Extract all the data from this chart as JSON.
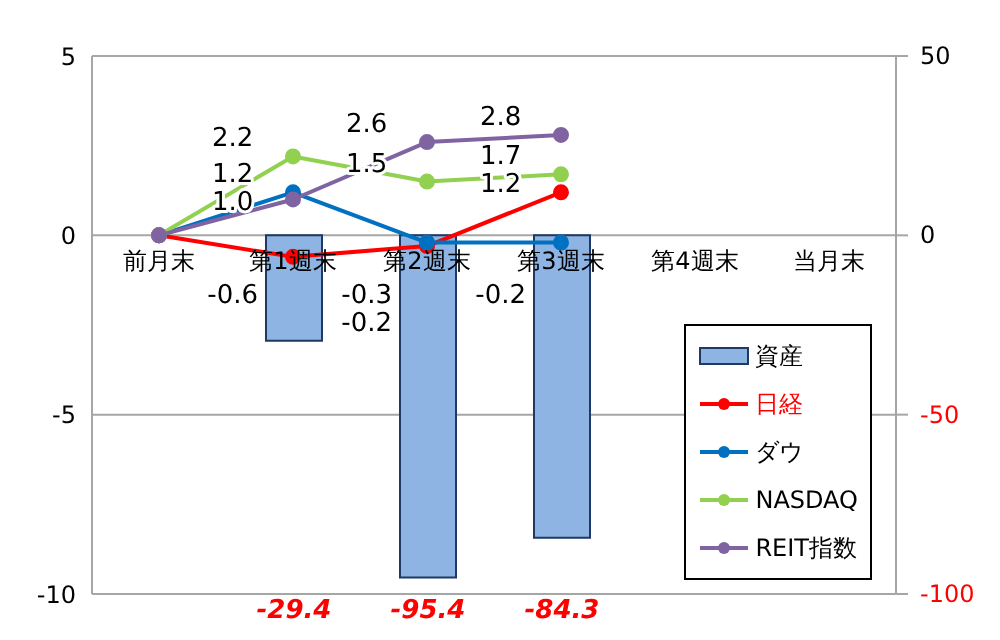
{
  "chart_data": {
    "type": "line",
    "categories": [
      "前月末",
      "第1週末",
      "第2週末",
      "第3週末",
      "第4週末",
      "当月末"
    ],
    "series": [
      {
        "name": "資産",
        "type": "bar",
        "axis": "y2",
        "color": "#8db4e2",
        "values": [
          null,
          -29.4,
          -95.4,
          -84.3,
          null,
          null
        ],
        "value_labels": [
          null,
          "-29.4",
          "-95.4",
          "-84.3",
          null,
          null
        ]
      },
      {
        "name": "日経",
        "color": "#ff0000",
        "values": [
          0,
          -0.6,
          -0.3,
          1.2,
          null,
          null
        ],
        "value_labels": [
          null,
          "-0.6",
          "-0.3",
          "1.2",
          null,
          null
        ]
      },
      {
        "name": "ダウ",
        "color": "#0070c0",
        "values": [
          0,
          1.2,
          -0.2,
          -0.2,
          null,
          null
        ],
        "value_labels": [
          null,
          "1.2",
          "-0.2",
          "-0.2",
          null,
          null
        ]
      },
      {
        "name": "NASDAQ",
        "color": "#92d050",
        "values": [
          0,
          2.2,
          1.5,
          1.7,
          null,
          null
        ],
        "value_labels": [
          null,
          "2.2",
          "1.5",
          "1.7",
          null,
          null
        ]
      },
      {
        "name": "REIT指数",
        "color": "#8064a2",
        "values": [
          0,
          1.0,
          2.6,
          2.8,
          null,
          null
        ],
        "value_labels": [
          null,
          "1.0",
          "2.6",
          "2.8",
          null,
          null
        ]
      }
    ],
    "ylim": [
      -10,
      5
    ],
    "yticks": [
      5,
      0,
      -5,
      -10
    ],
    "y2lim": [
      -100,
      50
    ],
    "y2ticks": [
      50,
      0,
      -50,
      -100
    ],
    "grid": "y",
    "legend": "bottom right",
    "marker": "circle"
  }
}
